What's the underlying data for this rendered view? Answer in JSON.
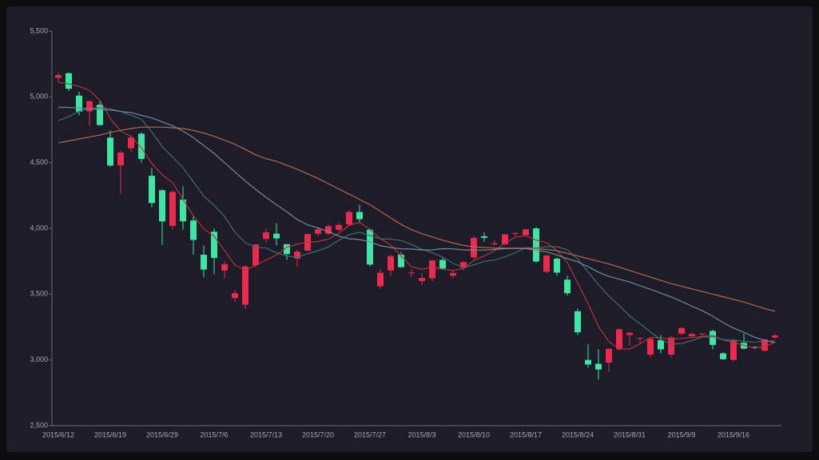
{
  "chart_data": {
    "type": "candlestick",
    "categories": [
      "2015/6/12",
      null,
      null,
      null,
      null,
      "2015/6/19",
      null,
      null,
      null,
      null,
      "2015/6/29",
      null,
      null,
      null,
      null,
      "2015/7/6",
      null,
      null,
      null,
      null,
      "2015/7/13",
      null,
      null,
      null,
      null,
      "2015/7/20",
      null,
      null,
      null,
      null,
      "2015/7/27",
      null,
      null,
      null,
      null,
      "2015/8/3",
      null,
      null,
      null,
      null,
      "2015/8/10",
      null,
      null,
      null,
      null,
      "2015/8/17",
      null,
      null,
      null,
      null,
      "2015/8/24",
      null,
      null,
      null,
      null,
      "2015/8/31",
      null,
      null,
      null,
      null,
      "2015/9/9",
      null,
      null,
      null,
      null,
      "2015/9/16",
      null,
      null,
      null,
      null
    ],
    "values": [
      [
        5145,
        5166,
        5110,
        5180
      ],
      [
        5180,
        5062,
        5045,
        5185
      ],
      [
        5010,
        4887,
        4860,
        5040
      ],
      [
        4890,
        4967,
        4780,
        4975
      ],
      [
        4940,
        4786,
        4780,
        4970
      ],
      [
        4690,
        4478,
        4470,
        4745
      ],
      [
        4480,
        4577,
        4260,
        4590
      ],
      [
        4610,
        4691,
        4580,
        4710
      ],
      [
        4720,
        4528,
        4500,
        4730
      ],
      [
        4400,
        4193,
        4160,
        4460
      ],
      [
        4290,
        4053,
        3875,
        4300
      ],
      [
        4020,
        4277,
        3990,
        4290
      ],
      [
        4220,
        4054,
        3990,
        4320
      ],
      [
        4060,
        3912,
        3800,
        4090
      ],
      [
        3800,
        3687,
        3630,
        3870
      ],
      [
        3975,
        3776,
        3650,
        4000
      ],
      [
        3680,
        3728,
        3620,
        3750
      ],
      [
        3470,
        3507,
        3440,
        3530
      ],
      [
        3420,
        3710,
        3390,
        3720
      ],
      [
        3720,
        3878,
        3700,
        3880
      ],
      [
        3920,
        3970,
        3890,
        4000
      ],
      [
        3960,
        3924,
        3870,
        4040
      ],
      [
        3880,
        3805,
        3760,
        3880
      ],
      [
        3770,
        3823,
        3710,
        3840
      ],
      [
        3830,
        3958,
        3830,
        3960
      ],
      [
        3960,
        3992,
        3940,
        4010
      ],
      [
        3960,
        4017,
        3950,
        4030
      ],
      [
        3990,
        4026,
        3980,
        4040
      ],
      [
        4030,
        4124,
        4020,
        4140
      ],
      [
        4125,
        4070,
        4040,
        4180
      ],
      [
        3990,
        3725,
        3710,
        4000
      ],
      [
        3560,
        3663,
        3540,
        3690
      ],
      [
        3680,
        3789,
        3640,
        3800
      ],
      [
        3800,
        3705,
        3700,
        3820
      ],
      [
        3660,
        3664,
        3630,
        3690
      ],
      [
        3600,
        3623,
        3570,
        3660
      ],
      [
        3620,
        3756,
        3600,
        3760
      ],
      [
        3760,
        3695,
        3690,
        3780
      ],
      [
        3640,
        3661,
        3620,
        3680
      ],
      [
        3700,
        3744,
        3680,
        3750
      ],
      [
        3780,
        3928,
        3770,
        3940
      ],
      [
        3940,
        3928,
        3900,
        3970
      ],
      [
        3880,
        3887,
        3870,
        3910
      ],
      [
        3880,
        3955,
        3870,
        3960
      ],
      [
        3960,
        3965,
        3940,
        3970
      ],
      [
        3950,
        3993,
        3940,
        3995
      ],
      [
        4000,
        3748,
        3740,
        4010
      ],
      [
        3670,
        3794,
        3660,
        3800
      ],
      [
        3770,
        3664,
        3640,
        3780
      ],
      [
        3610,
        3507,
        3490,
        3640
      ],
      [
        3370,
        3210,
        3190,
        3390
      ],
      [
        3000,
        2965,
        2940,
        3120
      ],
      [
        2970,
        2927,
        2850,
        3080
      ],
      [
        2980,
        3084,
        2910,
        3090
      ],
      [
        3080,
        3232,
        3070,
        3240
      ],
      [
        3190,
        3206,
        3110,
        3210
      ],
      [
        3160,
        3166,
        3130,
        3170
      ],
      [
        3040,
        3160,
        3020,
        3170
      ],
      [
        3150,
        3080,
        3050,
        3190
      ],
      [
        3040,
        3170,
        3020,
        3180
      ],
      [
        3200,
        3243,
        3190,
        3250
      ],
      [
        3180,
        3197,
        3170,
        3210
      ],
      [
        3195,
        3200,
        3180,
        3205
      ],
      [
        3220,
        3114,
        3080,
        3230
      ],
      [
        3050,
        3005,
        3000,
        3060
      ],
      [
        3000,
        3152,
        2990,
        3160
      ],
      [
        3130,
        3086,
        3080,
        3200
      ],
      [
        3100,
        3097,
        3080,
        3100
      ],
      [
        3070,
        3156,
        3060,
        3160
      ],
      [
        3170,
        3186,
        3160,
        3200
      ]
    ],
    "up_color": "#ec2a4f",
    "down_color": "#3ee6a3",
    "lines": [
      {
        "color": "#b8333a",
        "values": [
          5110,
          5100,
          5080,
          5050,
          4974,
          4836,
          4739,
          4700,
          4612,
          4493,
          4408,
          4348,
          4221,
          4098,
          3997,
          3941,
          3831,
          3722,
          3682,
          3720,
          3759,
          3798,
          3857,
          3880,
          3896,
          3900,
          3919,
          3963,
          4023,
          4046,
          3992,
          3922,
          3874,
          3790,
          3709,
          3689,
          3707,
          3689,
          3680,
          3696,
          3757,
          3791,
          3830,
          3888,
          3933,
          3946,
          3910,
          3891,
          3833,
          3741,
          3585,
          3428,
          3255,
          3139,
          3084,
          3083,
          3123,
          3170,
          3169,
          3156,
          3164,
          3170,
          3178,
          3185,
          3152,
          3134,
          3111,
          3091,
          3099,
          3135
        ]
      },
      {
        "color": "#3d6f72",
        "values": [
          4820,
          4850,
          4890,
          4910,
          4920,
          4910,
          4890,
          4860,
          4830,
          4734,
          4622,
          4544,
          4461,
          4355,
          4245,
          4175,
          4090,
          3972,
          3890,
          3859,
          3850,
          3815,
          3790,
          3781,
          3808,
          3830,
          3859,
          3910,
          3952,
          3971,
          3946,
          3921,
          3919,
          3907,
          3878,
          3841,
          3815,
          3782,
          3735,
          3703,
          3723,
          3749,
          3760,
          3784,
          3815,
          3852,
          3851,
          3861,
          3861,
          3837,
          3766,
          3669,
          3573,
          3486,
          3413,
          3334,
          3276,
          3213,
          3154,
          3120,
          3124,
          3147,
          3174,
          3177,
          3154,
          3149,
          3141,
          3135,
          3142,
          3144
        ]
      },
      {
        "color": "#6f8b9c",
        "values": [
          4920,
          4920,
          4915,
          4910,
          4905,
          4900,
          4890,
          4880,
          4860,
          4840,
          4810,
          4780,
          4740,
          4690,
          4630,
          4570,
          4500,
          4430,
          4360,
          4297,
          4236,
          4180,
          4126,
          4068,
          4027,
          4003,
          3975,
          3941,
          3921,
          3915,
          3898,
          3868,
          3855,
          3844,
          3843,
          3836,
          3837,
          3846,
          3844,
          3837,
          3835,
          3835,
          3840,
          3846,
          3847,
          3847,
          3833,
          3822,
          3798,
          3770,
          3745,
          3709,
          3667,
          3635,
          3614,
          3593,
          3564,
          3537,
          3508,
          3479,
          3445,
          3408,
          3374,
          3332,
          3284,
          3242,
          3209,
          3174,
          3148,
          3132
        ]
      },
      {
        "color": "#b7694a",
        "values": [
          4650,
          4665,
          4680,
          4695,
          4710,
          4730,
          4745,
          4760,
          4770,
          4770,
          4770,
          4765,
          4760,
          4745,
          4725,
          4700,
          4670,
          4640,
          4600,
          4560,
          4530,
          4510,
          4480,
          4450,
          4415,
          4380,
          4340,
          4300,
          4260,
          4220,
          4180,
          4130,
          4080,
          4030,
          3990,
          3960,
          3935,
          3910,
          3890,
          3870,
          3860,
          3855,
          3850,
          3850,
          3850,
          3850,
          3845,
          3840,
          3830,
          3810,
          3790,
          3770,
          3750,
          3730,
          3705,
          3680,
          3655,
          3630,
          3605,
          3580,
          3560,
          3540,
          3520,
          3500,
          3480,
          3460,
          3440,
          3415,
          3390,
          3370
        ]
      }
    ],
    "ylim": [
      2500,
      5500
    ],
    "yticks": [
      {
        "value": 2500,
        "label": "2,500"
      },
      {
        "value": 3000,
        "label": "3,000"
      },
      {
        "value": 3500,
        "label": "3,500"
      },
      {
        "value": 4000,
        "label": "4,000"
      },
      {
        "value": 4500,
        "label": "4,500"
      },
      {
        "value": 5000,
        "label": "5,000"
      },
      {
        "value": 5500,
        "label": "5,500"
      }
    ],
    "grid": false
  }
}
